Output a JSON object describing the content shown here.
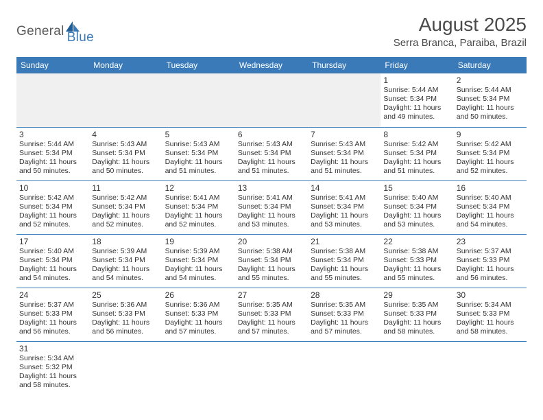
{
  "logo": {
    "part1": "General",
    "part2": "Blue"
  },
  "title": "August 2025",
  "subtitle": "Serra Branca, Paraiba, Brazil",
  "colors": {
    "header_bg": "#3a7ab8",
    "header_text": "#ffffff",
    "blank_bg": "#f0f0f0",
    "border": "#3a7ab8",
    "text": "#333333",
    "title_text": "#4a4a4a",
    "logo_gray": "#5a5a5a",
    "logo_blue": "#3a7ab8"
  },
  "day_headers": [
    "Sunday",
    "Monday",
    "Tuesday",
    "Wednesday",
    "Thursday",
    "Friday",
    "Saturday"
  ],
  "weeks": [
    [
      {
        "blank": true
      },
      {
        "blank": true
      },
      {
        "blank": true
      },
      {
        "blank": true
      },
      {
        "blank": true
      },
      {
        "day": "1",
        "sunrise": "Sunrise: 5:44 AM",
        "sunset": "Sunset: 5:34 PM",
        "daylight": "Daylight: 11 hours and 49 minutes."
      },
      {
        "day": "2",
        "sunrise": "Sunrise: 5:44 AM",
        "sunset": "Sunset: 5:34 PM",
        "daylight": "Daylight: 11 hours and 50 minutes."
      }
    ],
    [
      {
        "day": "3",
        "sunrise": "Sunrise: 5:44 AM",
        "sunset": "Sunset: 5:34 PM",
        "daylight": "Daylight: 11 hours and 50 minutes."
      },
      {
        "day": "4",
        "sunrise": "Sunrise: 5:43 AM",
        "sunset": "Sunset: 5:34 PM",
        "daylight": "Daylight: 11 hours and 50 minutes."
      },
      {
        "day": "5",
        "sunrise": "Sunrise: 5:43 AM",
        "sunset": "Sunset: 5:34 PM",
        "daylight": "Daylight: 11 hours and 51 minutes."
      },
      {
        "day": "6",
        "sunrise": "Sunrise: 5:43 AM",
        "sunset": "Sunset: 5:34 PM",
        "daylight": "Daylight: 11 hours and 51 minutes."
      },
      {
        "day": "7",
        "sunrise": "Sunrise: 5:43 AM",
        "sunset": "Sunset: 5:34 PM",
        "daylight": "Daylight: 11 hours and 51 minutes."
      },
      {
        "day": "8",
        "sunrise": "Sunrise: 5:42 AM",
        "sunset": "Sunset: 5:34 PM",
        "daylight": "Daylight: 11 hours and 51 minutes."
      },
      {
        "day": "9",
        "sunrise": "Sunrise: 5:42 AM",
        "sunset": "Sunset: 5:34 PM",
        "daylight": "Daylight: 11 hours and 52 minutes."
      }
    ],
    [
      {
        "day": "10",
        "sunrise": "Sunrise: 5:42 AM",
        "sunset": "Sunset: 5:34 PM",
        "daylight": "Daylight: 11 hours and 52 minutes."
      },
      {
        "day": "11",
        "sunrise": "Sunrise: 5:42 AM",
        "sunset": "Sunset: 5:34 PM",
        "daylight": "Daylight: 11 hours and 52 minutes."
      },
      {
        "day": "12",
        "sunrise": "Sunrise: 5:41 AM",
        "sunset": "Sunset: 5:34 PM",
        "daylight": "Daylight: 11 hours and 52 minutes."
      },
      {
        "day": "13",
        "sunrise": "Sunrise: 5:41 AM",
        "sunset": "Sunset: 5:34 PM",
        "daylight": "Daylight: 11 hours and 53 minutes."
      },
      {
        "day": "14",
        "sunrise": "Sunrise: 5:41 AM",
        "sunset": "Sunset: 5:34 PM",
        "daylight": "Daylight: 11 hours and 53 minutes."
      },
      {
        "day": "15",
        "sunrise": "Sunrise: 5:40 AM",
        "sunset": "Sunset: 5:34 PM",
        "daylight": "Daylight: 11 hours and 53 minutes."
      },
      {
        "day": "16",
        "sunrise": "Sunrise: 5:40 AM",
        "sunset": "Sunset: 5:34 PM",
        "daylight": "Daylight: 11 hours and 54 minutes."
      }
    ],
    [
      {
        "day": "17",
        "sunrise": "Sunrise: 5:40 AM",
        "sunset": "Sunset: 5:34 PM",
        "daylight": "Daylight: 11 hours and 54 minutes."
      },
      {
        "day": "18",
        "sunrise": "Sunrise: 5:39 AM",
        "sunset": "Sunset: 5:34 PM",
        "daylight": "Daylight: 11 hours and 54 minutes."
      },
      {
        "day": "19",
        "sunrise": "Sunrise: 5:39 AM",
        "sunset": "Sunset: 5:34 PM",
        "daylight": "Daylight: 11 hours and 54 minutes."
      },
      {
        "day": "20",
        "sunrise": "Sunrise: 5:38 AM",
        "sunset": "Sunset: 5:34 PM",
        "daylight": "Daylight: 11 hours and 55 minutes."
      },
      {
        "day": "21",
        "sunrise": "Sunrise: 5:38 AM",
        "sunset": "Sunset: 5:34 PM",
        "daylight": "Daylight: 11 hours and 55 minutes."
      },
      {
        "day": "22",
        "sunrise": "Sunrise: 5:38 AM",
        "sunset": "Sunset: 5:33 PM",
        "daylight": "Daylight: 11 hours and 55 minutes."
      },
      {
        "day": "23",
        "sunrise": "Sunrise: 5:37 AM",
        "sunset": "Sunset: 5:33 PM",
        "daylight": "Daylight: 11 hours and 56 minutes."
      }
    ],
    [
      {
        "day": "24",
        "sunrise": "Sunrise: 5:37 AM",
        "sunset": "Sunset: 5:33 PM",
        "daylight": "Daylight: 11 hours and 56 minutes."
      },
      {
        "day": "25",
        "sunrise": "Sunrise: 5:36 AM",
        "sunset": "Sunset: 5:33 PM",
        "daylight": "Daylight: 11 hours and 56 minutes."
      },
      {
        "day": "26",
        "sunrise": "Sunrise: 5:36 AM",
        "sunset": "Sunset: 5:33 PM",
        "daylight": "Daylight: 11 hours and 57 minutes."
      },
      {
        "day": "27",
        "sunrise": "Sunrise: 5:35 AM",
        "sunset": "Sunset: 5:33 PM",
        "daylight": "Daylight: 11 hours and 57 minutes."
      },
      {
        "day": "28",
        "sunrise": "Sunrise: 5:35 AM",
        "sunset": "Sunset: 5:33 PM",
        "daylight": "Daylight: 11 hours and 57 minutes."
      },
      {
        "day": "29",
        "sunrise": "Sunrise: 5:35 AM",
        "sunset": "Sunset: 5:33 PM",
        "daylight": "Daylight: 11 hours and 58 minutes."
      },
      {
        "day": "30",
        "sunrise": "Sunrise: 5:34 AM",
        "sunset": "Sunset: 5:33 PM",
        "daylight": "Daylight: 11 hours and 58 minutes."
      }
    ],
    [
      {
        "day": "31",
        "sunrise": "Sunrise: 5:34 AM",
        "sunset": "Sunset: 5:32 PM",
        "daylight": "Daylight: 11 hours and 58 minutes."
      },
      {
        "blank": true,
        "trailing": true
      },
      {
        "blank": true,
        "trailing": true
      },
      {
        "blank": true,
        "trailing": true
      },
      {
        "blank": true,
        "trailing": true
      },
      {
        "blank": true,
        "trailing": true
      },
      {
        "blank": true,
        "trailing": true
      }
    ]
  ]
}
